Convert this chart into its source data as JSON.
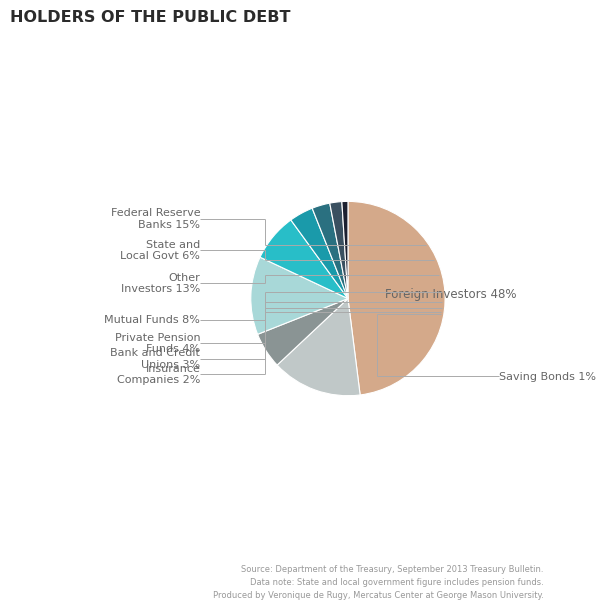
{
  "title": "HOLDERS OF THE PUBLIC DEBT",
  "slices": [
    {
      "label": "Foreign Investors 48%",
      "value": 48,
      "color": "#D4A98A"
    },
    {
      "label": "Federal Reserve\nBanks 15%",
      "value": 15,
      "color": "#C0C8C8"
    },
    {
      "label": "State and\nLocal Govt 6%",
      "value": 6,
      "color": "#8A9494"
    },
    {
      "label": "Other\nInvestors 13%",
      "value": 13,
      "color": "#A8D8D8"
    },
    {
      "label": "Mutual Funds 8%",
      "value": 8,
      "color": "#28BEC8"
    },
    {
      "label": "Private Pension\nFunds 4%",
      "value": 4,
      "color": "#1A9AAA"
    },
    {
      "label": "Bank and Credit\nUnions 3%",
      "value": 3,
      "color": "#2A7080"
    },
    {
      "label": "Insurance\nCompanies 2%",
      "value": 2,
      "color": "#3A5060"
    },
    {
      "label": "Saving Bonds 1%",
      "value": 1,
      "color": "#1C2030"
    }
  ],
  "footnote": "Source: Department of the Treasury, September 2013 Treasury Bulletin.\nData note: State and local government figure includes pension funds.\nProduced by Veronique de Rugy, Mercatus Center at George Mason University.",
  "bg_color": "#FFFFFF",
  "title_color": "#2B2B2B",
  "label_color": "#666666",
  "label_line_color": "#AAAAAA"
}
